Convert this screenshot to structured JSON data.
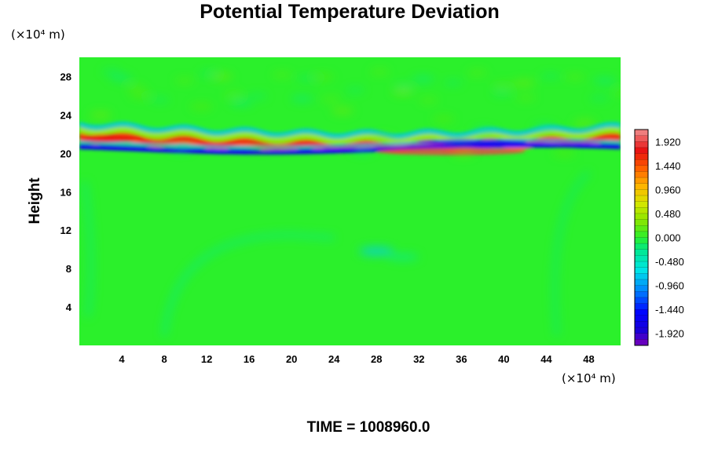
{
  "chart_data": {
    "type": "heatmap",
    "title": "Potential Temperature Deviation",
    "ylabel": "Height",
    "xlabel": "",
    "y_unit": "(×10⁴ m)",
    "x_unit": "(×10⁴ m)",
    "xlim": [
      0,
      51
    ],
    "ylim": [
      0,
      30
    ],
    "x_ticks": [
      4,
      8,
      12,
      16,
      20,
      24,
      28,
      32,
      36,
      40,
      44,
      48
    ],
    "y_ticks": [
      4,
      8,
      12,
      16,
      20,
      24,
      28
    ],
    "colorbar": {
      "min": -2.16,
      "max": 2.16,
      "tick_values": [
        1.92,
        1.44,
        0.96,
        0.48,
        0.0,
        -0.48,
        -0.96,
        -1.44,
        -1.92
      ],
      "tick_labels": [
        "1.920",
        "1.440",
        "0.960",
        "0.480",
        "0.000",
        "-0.480",
        "-0.960",
        "-1.440",
        "-1.920"
      ]
    },
    "field_description_values": {
      "background": 0.0,
      "positive_band_height": 21.3,
      "negative_band_height": 20.4
    },
    "time_label": "TIME = 1008960.0"
  }
}
